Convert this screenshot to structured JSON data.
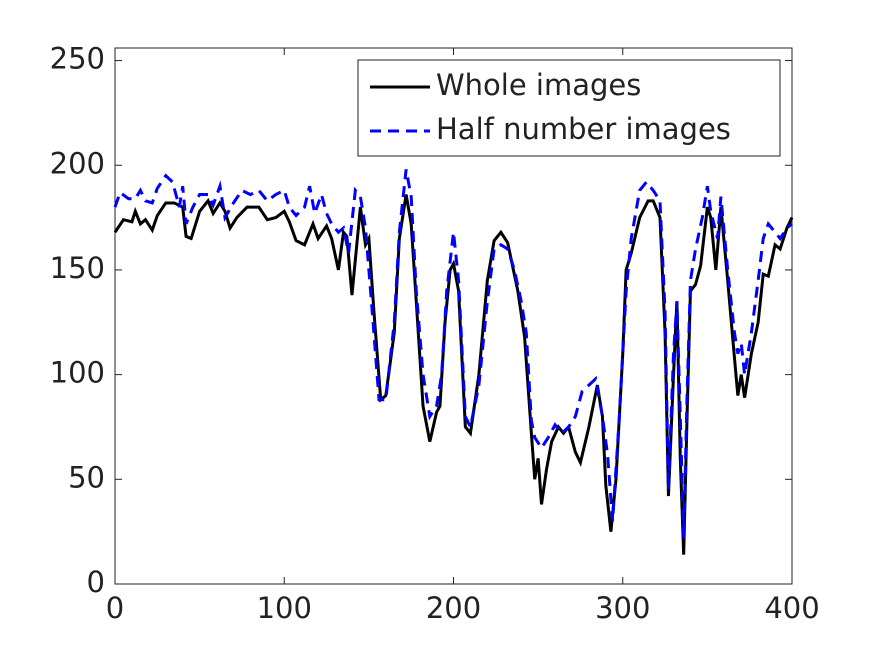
{
  "chart_data": {
    "type": "line",
    "xlim": [
      0,
      400
    ],
    "xticks": [
      0,
      100,
      200,
      300,
      400
    ],
    "ylim": [
      0,
      256
    ],
    "yticks": [
      0,
      50,
      100,
      150,
      200,
      250
    ],
    "legend": "upper right",
    "series": [
      {
        "name": "Whole images",
        "color": "#000000",
        "dash": "solid",
        "x": [
          0,
          5,
          10,
          12,
          15,
          18,
          22,
          25,
          30,
          35,
          40,
          42,
          45,
          50,
          55,
          58,
          62,
          65,
          68,
          72,
          78,
          85,
          90,
          95,
          100,
          103,
          107,
          112,
          117,
          120,
          125,
          128,
          132,
          135,
          137,
          140,
          145,
          148,
          150,
          153,
          157,
          160,
          165,
          168,
          172,
          175,
          178,
          182,
          186,
          190,
          192,
          195,
          198,
          200,
          203,
          207,
          210,
          215,
          220,
          224,
          228,
          232,
          238,
          242,
          246,
          248,
          250,
          252,
          255,
          258,
          262,
          265,
          268,
          272,
          275,
          280,
          285,
          288,
          290,
          293,
          296,
          300,
          302,
          305,
          310,
          315,
          318,
          322,
          325,
          327,
          330,
          332,
          334,
          336,
          338,
          340,
          343,
          346,
          350,
          352,
          355,
          358,
          362,
          366,
          368,
          370,
          372,
          376,
          380,
          383,
          386,
          390,
          393,
          397,
          400
        ],
        "values": [
          168,
          174,
          173,
          178,
          172,
          174,
          169,
          176,
          182,
          182,
          180,
          166,
          165,
          178,
          183,
          177,
          182,
          178,
          170,
          175,
          180,
          180,
          174,
          175,
          178,
          173,
          164,
          162,
          172,
          165,
          171,
          165,
          150,
          168,
          166,
          138,
          180,
          162,
          165,
          130,
          88,
          90,
          120,
          165,
          186,
          172,
          135,
          85,
          68,
          82,
          85,
          125,
          150,
          153,
          140,
          75,
          72,
          100,
          145,
          164,
          168,
          163,
          140,
          118,
          72,
          50,
          60,
          38,
          55,
          68,
          75,
          72,
          75,
          63,
          58,
          75,
          95,
          80,
          47,
          25,
          50,
          110,
          150,
          158,
          175,
          183,
          183,
          175,
          120,
          42,
          100,
          135,
          60,
          14,
          80,
          140,
          143,
          152,
          180,
          175,
          150,
          180,
          145,
          108,
          90,
          100,
          89,
          110,
          125,
          148,
          147,
          162,
          160,
          170,
          175
        ]
      },
      {
        "name": "Half number images",
        "color": "#0000ff",
        "dash": "dashed",
        "x": [
          0,
          3,
          8,
          12,
          15,
          18,
          22,
          25,
          30,
          34,
          38,
          40,
          42,
          46,
          50,
          55,
          58,
          62,
          65,
          70,
          75,
          80,
          85,
          90,
          95,
          100,
          103,
          107,
          112,
          115,
          118,
          122,
          125,
          128,
          132,
          135,
          138,
          142,
          145,
          148,
          152,
          156,
          160,
          165,
          168,
          172,
          175,
          178,
          182,
          186,
          190,
          193,
          196,
          200,
          203,
          207,
          210,
          215,
          220,
          224,
          228,
          232,
          236,
          240,
          243,
          246,
          248,
          252,
          256,
          260,
          264,
          268,
          272,
          276,
          280,
          284,
          288,
          291,
          294,
          298,
          302,
          305,
          310,
          314,
          318,
          322,
          325,
          327,
          330,
          332,
          334,
          336,
          338,
          340,
          343,
          347,
          350,
          352,
          356,
          358,
          362,
          366,
          368,
          370,
          372,
          376,
          380,
          383,
          386,
          390,
          393,
          397,
          400
        ],
        "values": [
          180,
          187,
          184,
          184,
          188,
          183,
          182,
          189,
          195,
          192,
          180,
          190,
          172,
          180,
          186,
          186,
          181,
          190,
          175,
          182,
          188,
          186,
          188,
          183,
          186,
          188,
          180,
          176,
          180,
          190,
          177,
          186,
          177,
          172,
          168,
          170,
          158,
          188,
          185,
          170,
          130,
          88,
          88,
          125,
          168,
          198,
          185,
          140,
          100,
          80,
          85,
          100,
          140,
          168,
          145,
          80,
          75,
          95,
          135,
          160,
          162,
          160,
          150,
          135,
          120,
          78,
          70,
          65,
          70,
          76,
          72,
          75,
          80,
          92,
          95,
          98,
          80,
          62,
          30,
          80,
          140,
          165,
          188,
          192,
          188,
          183,
          130,
          45,
          110,
          135,
          80,
          22,
          90,
          145,
          160,
          175,
          190,
          178,
          165,
          185,
          150,
          120,
          110,
          115,
          100,
          120,
          145,
          165,
          172,
          168,
          165,
          170,
          172
        ]
      }
    ]
  }
}
